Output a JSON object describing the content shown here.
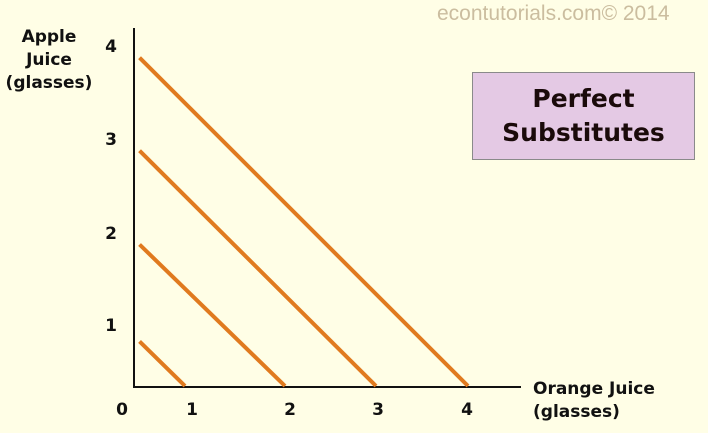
{
  "watermark": "econtutorials.com© 2014",
  "chart_data": {
    "type": "line",
    "title_lines": [
      "Perfect",
      "Substitutes"
    ],
    "ylabel_lines": [
      "Apple",
      "Juice",
      "(glasses)"
    ],
    "xlabel_lines": [
      "Orange Juice",
      "(glasses)"
    ],
    "x_ticks": [
      "0",
      "1",
      "2",
      "3",
      "4"
    ],
    "y_ticks": [
      "1",
      "2",
      "3",
      "4"
    ],
    "xlim": [
      0,
      4.5
    ],
    "ylim": [
      0,
      4.3
    ],
    "grid": false,
    "line_color": "#e07a1f",
    "background_color": "#fffee6",
    "title_box_color": "#e4c9e4",
    "series": [
      {
        "points": [
          [
            0.05,
            0.8
          ],
          [
            1,
            0
          ]
        ]
      },
      {
        "points": [
          [
            0.05,
            1.95
          ],
          [
            2,
            0
          ]
        ]
      },
      {
        "points": [
          [
            0.05,
            2.95
          ],
          [
            3,
            0
          ]
        ]
      },
      {
        "points": [
          [
            0.05,
            3.95
          ],
          [
            4,
            0
          ]
        ]
      }
    ]
  }
}
